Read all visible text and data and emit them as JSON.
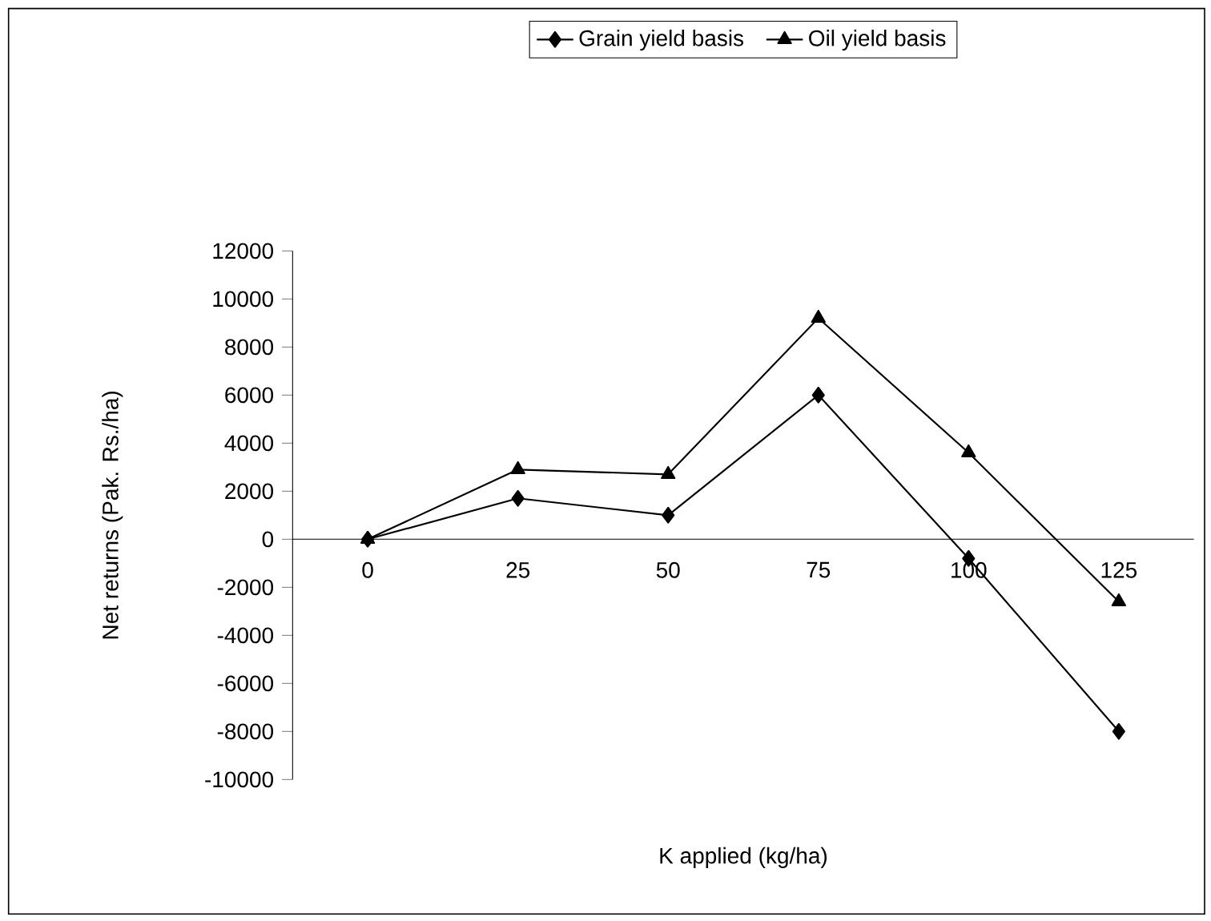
{
  "chart_data": {
    "type": "line",
    "categories": [
      "0",
      "25",
      "50",
      "75",
      "100",
      "125"
    ],
    "series": [
      {
        "name": "Grain yield basis",
        "color": "#000000",
        "marker": "diamond",
        "values": [
          0,
          1700,
          1000,
          6000,
          -800,
          -8000
        ]
      },
      {
        "name": "Oil yield basis",
        "color": "#000000",
        "marker": "triangle",
        "values": [
          0,
          2900,
          2700,
          9200,
          3600,
          -2600
        ]
      }
    ],
    "ylim": [
      -10000,
      12000
    ],
    "yticks": [
      -10000,
      -8000,
      -6000,
      -4000,
      -2000,
      0,
      2000,
      4000,
      6000,
      8000,
      10000,
      12000
    ],
    "xlabel": "K applied (kg/ha)",
    "ylabel": "Net returns (Pak. Rs./ha)",
    "legend": "top"
  }
}
